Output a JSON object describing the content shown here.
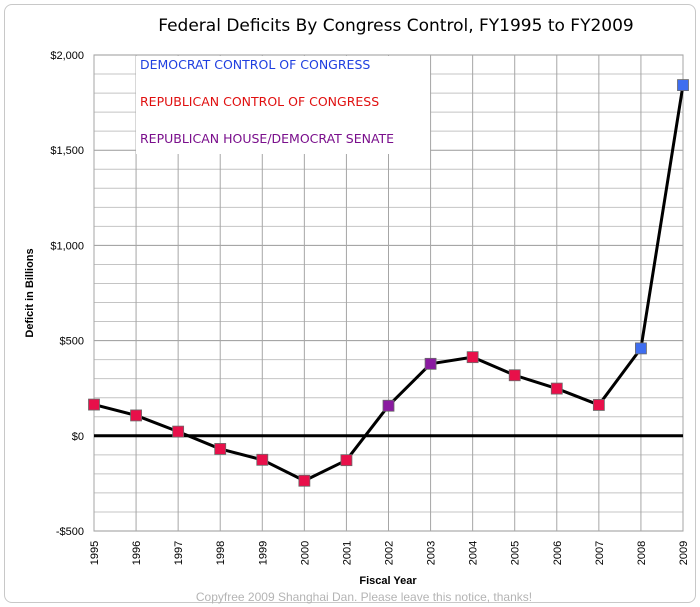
{
  "chart_data": {
    "type": "line",
    "title": "Federal Deficits By Congress Control, FY1995 to FY2009",
    "xlabel": "Fiscal Year",
    "ylabel": "Deficit in Billions",
    "ylim": [
      -500,
      2000
    ],
    "y_ticks": [
      {
        "value": 2000,
        "label": "$2,000"
      },
      {
        "value": 1500,
        "label": "$1,500"
      },
      {
        "value": 1000,
        "label": "$1,000"
      },
      {
        "value": 500,
        "label": "$500"
      },
      {
        "value": 0,
        "label": "$0"
      },
      {
        "value": -500,
        "label": "-$500"
      }
    ],
    "x": [
      "1995",
      "1996",
      "1997",
      "1998",
      "1999",
      "2000",
      "2001",
      "2002",
      "2003",
      "2004",
      "2005",
      "2006",
      "2007",
      "2008",
      "2009"
    ],
    "values": [
      164,
      107,
      22,
      -69,
      -126,
      -236,
      -128,
      158,
      378,
      413,
      318,
      248,
      162,
      459,
      1842
    ],
    "point_control": [
      "republican",
      "republican",
      "republican",
      "republican",
      "republican",
      "republican",
      "republican",
      "split",
      "split",
      "republican",
      "republican",
      "republican",
      "republican",
      "democrat",
      "democrat"
    ],
    "legend": [
      {
        "key": "democrat",
        "label": "DEMOCRAT CONTROL OF CONGRESS",
        "color": "#1f3fe0"
      },
      {
        "key": "republican",
        "label": "REPUBLICAN CONTROL OF CONGRESS",
        "color": "#e01010"
      },
      {
        "key": "split",
        "label": "REPUBLICAN HOUSE/DEMOCRAT SENATE",
        "color": "#7a0f8c"
      }
    ],
    "legend_position": "top-left",
    "marker_colors": {
      "democrat": "#3f6ef0",
      "republican": "#e8104a",
      "split": "#8a1aa0"
    },
    "grid": true,
    "zero_line": true,
    "line_color": "#000000"
  },
  "footer": "Copyfree 2009 Shanghai Dan.  Please leave this notice, thanks!"
}
